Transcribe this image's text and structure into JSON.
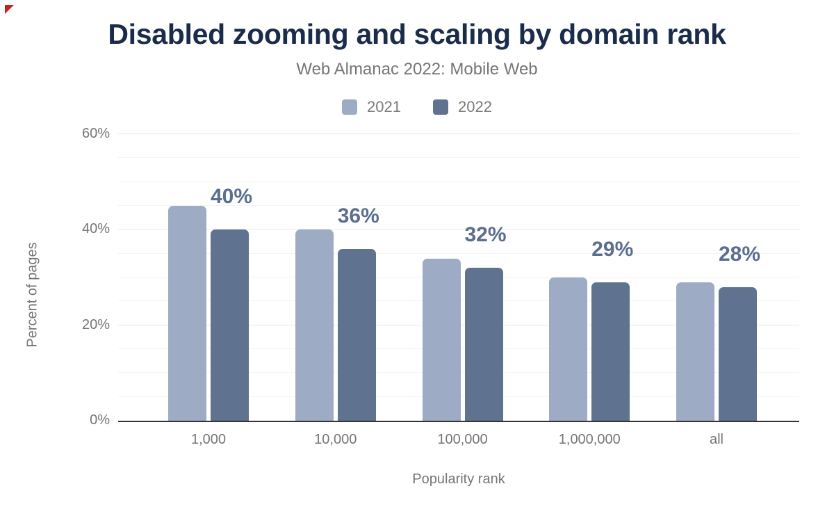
{
  "colors": {
    "background": "#ffffff",
    "title": "#1b2b4a",
    "muted_text": "#757575",
    "axis_line": "#333333",
    "gridline_major": "#e8e8e8",
    "gridline_minor": "#f4f4f4",
    "series_2021": "#9dabc5",
    "series_2022": "#5f7290",
    "data_label": "#5b6e90",
    "corner_marker": "#c5221f"
  },
  "icons": {
    "corner_marker": "red-triangle"
  },
  "chart_data": {
    "type": "bar",
    "title": "Disabled zooming and scaling by domain rank",
    "subtitle": "Web Almanac 2022: Mobile Web",
    "categories": [
      "1,000",
      "10,000",
      "100,000",
      "1,000,000",
      "all"
    ],
    "series": [
      {
        "name": "2021",
        "color": "#9dabc5",
        "values": [
          45,
          40,
          34,
          30,
          29
        ]
      },
      {
        "name": "2022",
        "color": "#5f7290",
        "values": [
          40,
          36,
          32,
          29,
          28
        ],
        "data_labels": [
          "40%",
          "36%",
          "32%",
          "29%",
          "28%"
        ]
      }
    ],
    "xlabel": "Popularity rank",
    "ylabel": "Percent of pages",
    "ylim": [
      0,
      60
    ],
    "yticks": [
      {
        "v": 0,
        "label": "0%"
      },
      {
        "v": 20,
        "label": "20%"
      },
      {
        "v": 40,
        "label": "40%"
      },
      {
        "v": 60,
        "label": "60%"
      }
    ],
    "minor_grid_step": 5,
    "grid": true,
    "legend_position": "top"
  }
}
